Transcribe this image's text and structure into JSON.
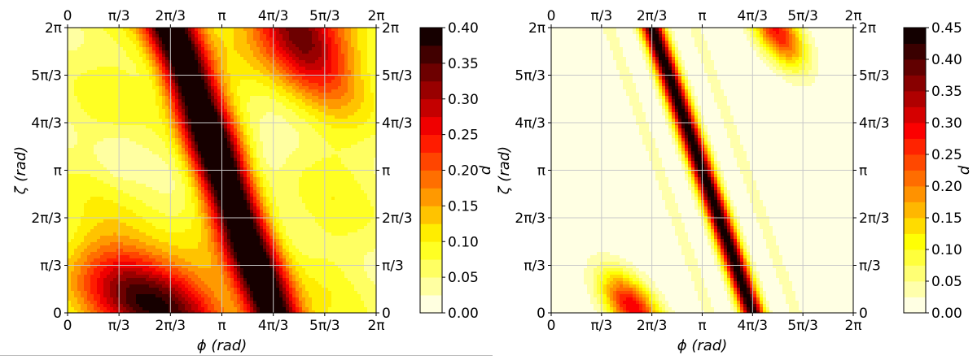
{
  "chart_data": [
    {
      "type": "heatmap",
      "title": "",
      "xlabel": "ϕ (rad)",
      "ylabel": "ζ (rad)",
      "colorbar_label": "d",
      "xlim": [
        0,
        6.2832
      ],
      "ylim": [
        0,
        6.2832
      ],
      "x_ticks": [
        0,
        1.0472,
        2.0944,
        3.1416,
        4.1888,
        5.236,
        6.2832
      ],
      "x_tick_labels": [
        "0",
        "π/3",
        "2π/3",
        "π",
        "4π/3",
        "5π/3",
        "2π"
      ],
      "y_ticks": [
        0,
        1.0472,
        2.0944,
        3.1416,
        4.1888,
        5.236,
        6.2832
      ],
      "y_tick_labels": [
        "0",
        "π/3",
        "2π/3",
        "π",
        "4π/3",
        "5π/3",
        "2π"
      ],
      "colorbar_range": [
        0,
        0.4
      ],
      "colorbar_ticks": [
        0.0,
        0.05,
        0.1,
        0.15,
        0.2,
        0.25,
        0.3,
        0.35,
        0.4
      ],
      "colorbar_tick_labels": [
        "0.00",
        "0.05",
        "0.10",
        "0.15",
        "0.20",
        "0.25",
        "0.30",
        "0.35",
        "0.40"
      ],
      "contour_levels": 16,
      "grid": true,
      "colormap": "hot_r",
      "features": [
        {
          "kind": "main-band",
          "phi_at_zeta0": 4.19,
          "dphi_dzeta": -0.333,
          "width_rad": 0.38,
          "peak_d": 0.4
        },
        {
          "kind": "lobe",
          "phi": 1.75,
          "zeta": 0.25,
          "sphi": 0.95,
          "szeta": 0.85,
          "rho": -0.45,
          "peak_d": 0.33
        },
        {
          "kind": "lobe",
          "phi": 4.7,
          "zeta": 6.15,
          "sphi": 0.7,
          "szeta": 0.9,
          "rho": -0.45,
          "peak_d": 0.3
        }
      ],
      "background_d": 0.07
    },
    {
      "type": "heatmap",
      "title": "",
      "xlabel": "ϕ (rad)",
      "ylabel": "ζ (rad)",
      "colorbar_label": "d",
      "xlim": [
        0,
        6.2832
      ],
      "ylim": [
        0,
        6.2832
      ],
      "x_ticks": [
        0,
        1.0472,
        2.0944,
        3.1416,
        4.1888,
        5.236,
        6.2832
      ],
      "x_tick_labels": [
        "0",
        "π/3",
        "2π/3",
        "π",
        "4π/3",
        "5π/3",
        "2π"
      ],
      "y_ticks": [
        0,
        1.0472,
        2.0944,
        3.1416,
        4.1888,
        5.236,
        6.2832
      ],
      "y_tick_labels": [
        "0",
        "π/3",
        "2π/3",
        "π",
        "4π/3",
        "5π/3",
        "2π"
      ],
      "colorbar_range": [
        0,
        0.45
      ],
      "colorbar_ticks": [
        0.0,
        0.05,
        0.1,
        0.15,
        0.2,
        0.25,
        0.3,
        0.35,
        0.4,
        0.45
      ],
      "colorbar_tick_labels": [
        "0.00",
        "0.05",
        "0.10",
        "0.15",
        "0.20",
        "0.25",
        "0.30",
        "0.35",
        "0.40",
        "0.45"
      ],
      "contour_levels": 18,
      "grid": true,
      "colormap": "hot_r",
      "features": [
        {
          "kind": "main-band",
          "phi_at_zeta0": 4.19,
          "dphi_dzeta": -0.333,
          "width_rad": 0.17,
          "peak_d": 0.45
        },
        {
          "kind": "lobe",
          "phi": 1.7,
          "zeta": 0.1,
          "sphi": 0.45,
          "szeta": 0.55,
          "rho": -0.6,
          "peak_d": 0.3
        },
        {
          "kind": "lobe",
          "phi": 4.7,
          "zeta": 6.2,
          "sphi": 0.4,
          "szeta": 0.55,
          "rho": -0.6,
          "peak_d": 0.28
        }
      ],
      "background_d": 0.0
    }
  ]
}
